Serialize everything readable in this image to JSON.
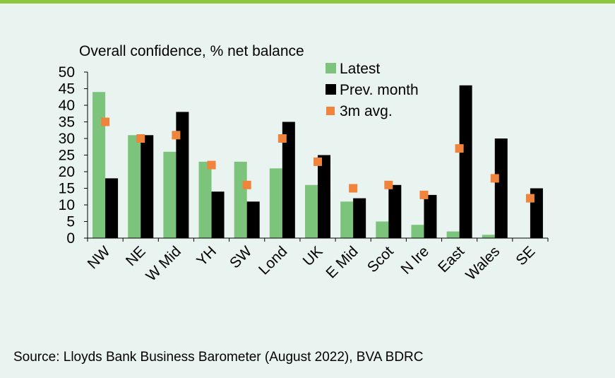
{
  "source_text": "Source: Lloyds Bank Business Barometer (August 2022), BVA BDRC",
  "colors": {
    "latest": "#7cc47c",
    "prev": "#000000",
    "avg": "#f0843c",
    "accent_rule": "#8dc63f",
    "background": "#e9f3ef"
  },
  "chart_data": {
    "type": "bar",
    "title": "Overall confidence, % net balance",
    "xlabel": "",
    "ylabel": "",
    "ylim": [
      0,
      50
    ],
    "yticks": [
      0,
      5,
      10,
      15,
      20,
      25,
      30,
      35,
      40,
      45,
      50
    ],
    "grid": false,
    "legend_position": "top-right",
    "categories": [
      "NW",
      "NE",
      "W Mid",
      "YH",
      "SW",
      "Lond",
      "UK",
      "E Mid",
      "Scot",
      "N Ire",
      "East",
      "Wales",
      "SE"
    ],
    "series": [
      {
        "name": "Latest",
        "type": "bar",
        "values": [
          44,
          31,
          26,
          23,
          23,
          21,
          16,
          11,
          5,
          4,
          2,
          1,
          0
        ]
      },
      {
        "name": "Prev. month",
        "type": "bar",
        "values": [
          18,
          31,
          38,
          14,
          11,
          35,
          25,
          12,
          16,
          13,
          46,
          30,
          15
        ]
      },
      {
        "name": "3m avg.",
        "type": "marker",
        "values": [
          35,
          30,
          31,
          22,
          16,
          30,
          23,
          15,
          16,
          13,
          27,
          18,
          12
        ]
      }
    ]
  }
}
